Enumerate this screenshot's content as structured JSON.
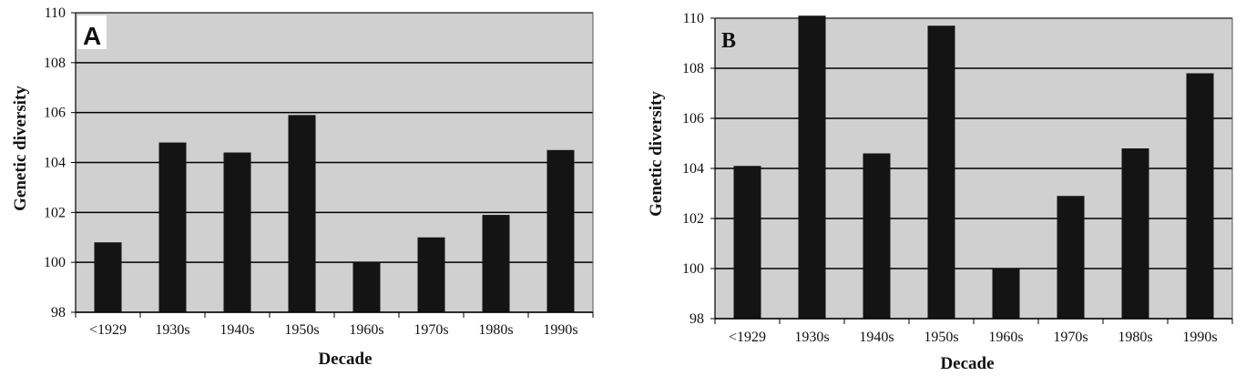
{
  "chart_data": [
    {
      "type": "bar",
      "panel_label": "A",
      "categories": [
        "<1929",
        "1930s",
        "1940s",
        "1950s",
        "1960s",
        "1970s",
        "1980s",
        "1990s"
      ],
      "values": [
        100.8,
        104.8,
        104.4,
        105.9,
        100.0,
        101.0,
        101.9,
        104.5
      ],
      "xlabel": "Decade",
      "ylabel": "Genetic diversity",
      "ylim": [
        98,
        110
      ],
      "yticks": [
        98,
        100,
        102,
        104,
        106,
        108,
        110
      ],
      "grid": true,
      "colors": {
        "bar": "#141414",
        "plot_bg": "#d0d0d0",
        "grid": "#000000"
      }
    },
    {
      "type": "bar",
      "panel_label": "B",
      "categories": [
        "<1929",
        "1930s",
        "1940s",
        "1950s",
        "1960s",
        "1970s",
        "1980s",
        "1990s"
      ],
      "values": [
        104.1,
        110.1,
        104.6,
        109.7,
        100.0,
        102.9,
        104.8,
        107.8
      ],
      "xlabel": "Decade",
      "ylabel": "Genetic diversity",
      "ylim": [
        98,
        110
      ],
      "yticks": [
        98,
        100,
        102,
        104,
        106,
        108,
        110
      ],
      "grid": true,
      "colors": {
        "bar": "#141414",
        "plot_bg": "#d0d0d0",
        "grid": "#000000"
      }
    }
  ]
}
